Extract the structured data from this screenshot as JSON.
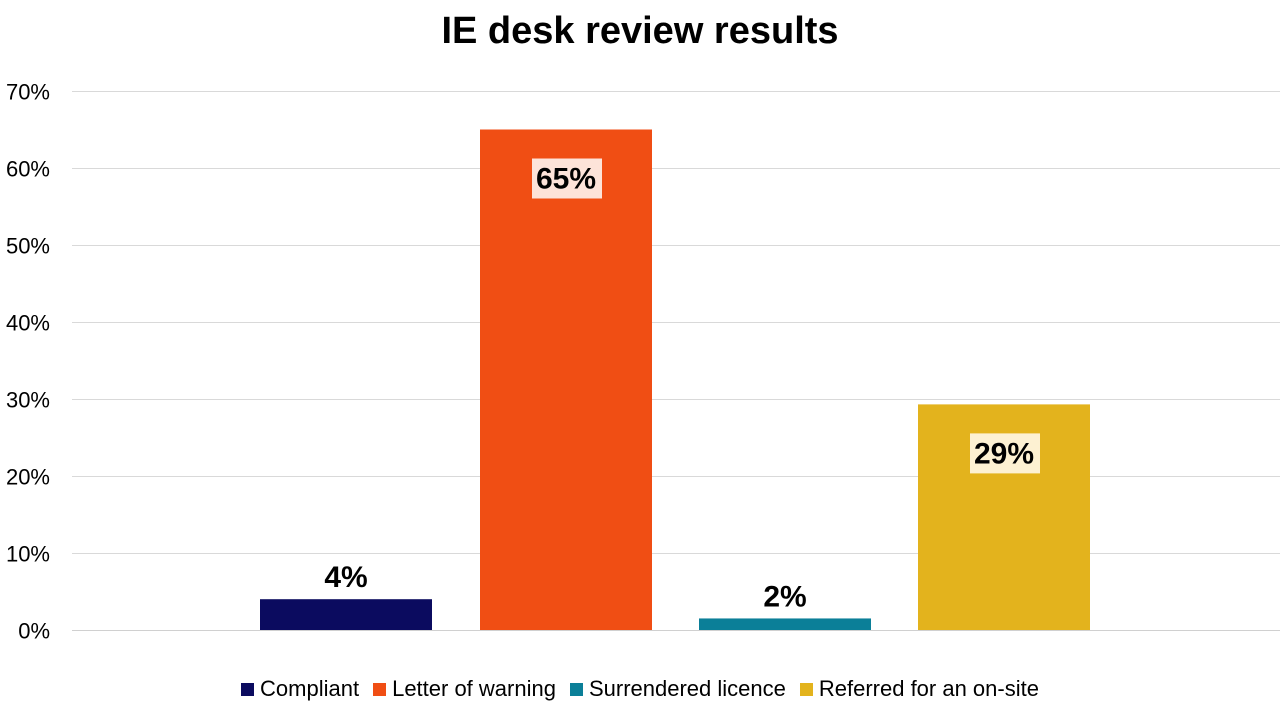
{
  "chart_data": {
    "type": "bar",
    "title": "IE desk review results",
    "categories": [
      "Compliant",
      "Letter of warning",
      "Surrendered licence",
      "Referred for an on-site"
    ],
    "values": [
      4,
      65,
      1.5,
      29.3
    ],
    "data_labels": [
      "4%",
      "65%",
      "2%",
      "29%"
    ],
    "colors": [
      "#0b0b5f",
      "#f04e14",
      "#0b7f98",
      "#e3b31d"
    ],
    "label_inside": [
      false,
      true,
      false,
      true
    ],
    "ylim": [
      0,
      70
    ],
    "y_ticks": [
      0,
      10,
      20,
      30,
      40,
      50,
      60,
      70
    ],
    "y_tick_labels": [
      "0%",
      "10%",
      "20%",
      "30%",
      "40%",
      "50%",
      "60%",
      "70%"
    ],
    "grid": true,
    "legend_position": "bottom",
    "xlabel": "",
    "ylabel": ""
  }
}
